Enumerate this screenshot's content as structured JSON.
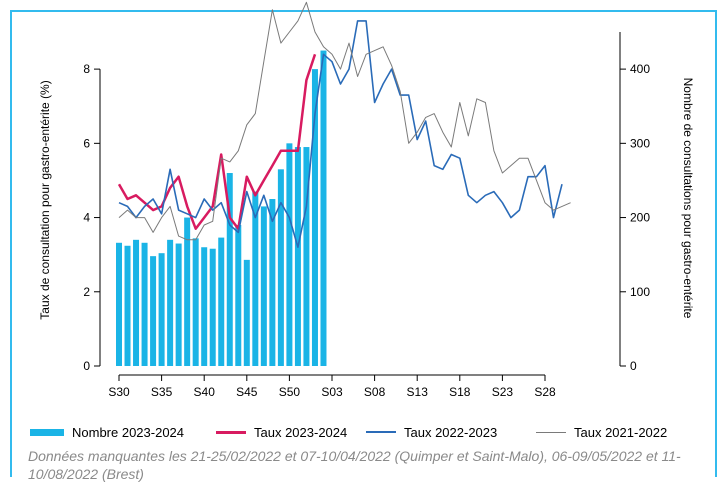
{
  "chart_data": {
    "type": "bar",
    "ylabel_left": "Taux de consultation pour gastro-entérite (%)",
    "ylabel_right": "Nombre de consultations pour gastro-entérite",
    "ylim_left": [
      0,
      9
    ],
    "ylim_right": [
      0,
      450
    ],
    "yticks_left": [
      "0",
      "2",
      "4",
      "6",
      "8"
    ],
    "yticks_right": [
      "0",
      "100",
      "200",
      "300",
      "400"
    ],
    "grid": false,
    "legend_position": "bottom",
    "x_tick_labels": [
      "S30",
      "S35",
      "S40",
      "S45",
      "S50",
      "S03",
      "S08",
      "S13",
      "S18",
      "S23",
      "S28"
    ],
    "series": [
      {
        "name": "Nombre 2023-2024",
        "kind": "bar",
        "axis": "right",
        "color": "#1ab4e6",
        "start_week": 30,
        "values": [
          166,
          162,
          170,
          166,
          148,
          152,
          170,
          165,
          200,
          172,
          160,
          158,
          173,
          260,
          190,
          143,
          235,
          215,
          225,
          265,
          300,
          295,
          295,
          400,
          425
        ]
      },
      {
        "name": "Taux 2023-2024",
        "kind": "line",
        "axis": "left",
        "color": "#d81b60",
        "start_week": 30,
        "values": [
          4.9,
          4.5,
          4.6,
          4.4,
          4.2,
          4.3,
          4.8,
          5.1,
          4.3,
          3.7,
          4.0,
          4.3,
          5.7,
          4.0,
          3.7,
          5.1,
          4.6,
          5.0,
          5.4,
          5.8,
          5.8,
          5.8,
          7.7,
          8.4
        ]
      },
      {
        "name": "Taux 2022-2023",
        "kind": "line",
        "axis": "left",
        "color": "#2a6bb8",
        "start_week": 30,
        "values": [
          4.4,
          4.3,
          4.0,
          4.3,
          4.5,
          4.1,
          5.3,
          4.2,
          4.1,
          4.0,
          4.5,
          4.2,
          4.4,
          3.8,
          3.6,
          4.7,
          4.0,
          4.6,
          3.9,
          4.4,
          4.0,
          3.2,
          4.3,
          6.8,
          8.4,
          8.2,
          7.6,
          8.0,
          9.3,
          9.3,
          7.1,
          7.6,
          8.0,
          7.3,
          7.3,
          6.1,
          6.6,
          5.4,
          5.3,
          5.7,
          5.6,
          4.6,
          4.4,
          4.6,
          4.7,
          4.4,
          4.0,
          4.2,
          5.1,
          5.1,
          5.4,
          4.0,
          4.9
        ]
      },
      {
        "name": "Taux 2021-2022",
        "kind": "line",
        "axis": "left",
        "color": "#7a7a7a",
        "start_week": 30,
        "values": [
          4.0,
          4.2,
          4.0,
          4.0,
          3.6,
          4.0,
          4.3,
          3.5,
          3.4,
          3.4,
          3.8,
          3.9,
          5.6,
          5.5,
          5.8,
          6.5,
          6.8,
          8.2,
          9.6,
          8.7,
          9.0,
          9.3,
          9.8,
          9.0,
          8.6,
          8.4,
          8.0,
          8.7,
          7.8,
          8.4,
          8.5,
          8.6,
          8.1,
          7.4,
          6.0,
          6.3,
          6.7,
          6.8,
          6.3,
          5.9,
          7.1,
          6.2,
          7.2,
          7.1,
          5.8,
          5.2,
          5.4,
          5.6,
          5.6,
          5.0,
          4.4,
          4.2,
          4.3,
          4.4
        ]
      }
    ]
  },
  "legend": {
    "nombre_2023_2024": "Nombre 2023-2024",
    "taux_2023_2024": "Taux 2023-2024",
    "taux_2022_2023": "Taux 2022-2023",
    "taux_2021_2022": "Taux 2021-2022"
  },
  "note": "Données manquantes les 21-25/02/2022 et 07-10/04/2022 (Quimper et Saint-Malo), 06-09/05/2022 et 11-10/08/2022 (Brest)"
}
